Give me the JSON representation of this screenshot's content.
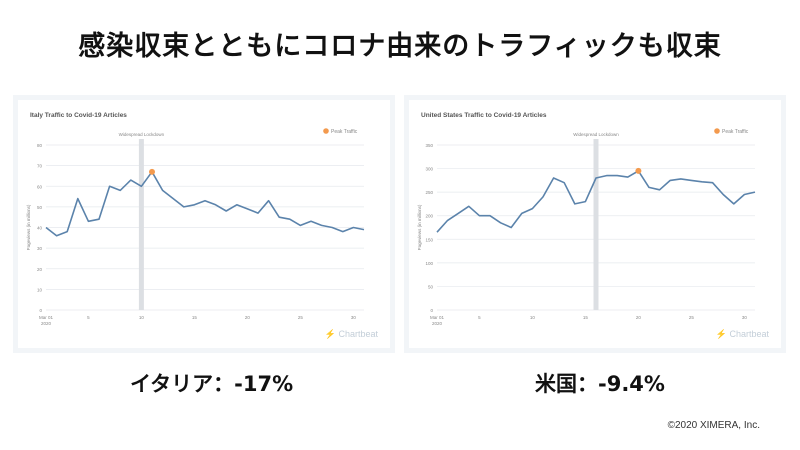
{
  "slide": {
    "title": "感染収束とともにコロナ由来のトラフィックも収束",
    "copyright": "©2020 XIMERA, Inc."
  },
  "captions": {
    "left": "イタリア：-17%",
    "right": "米国：-9.4%"
  },
  "colors": {
    "line": "#5b83ab",
    "peak": "#f39a4e",
    "grid": "#e6e9ee",
    "lockdown_band": "#dcdfe3"
  },
  "chart_data": [
    {
      "type": "line",
      "title": "Italy Traffic to Covid-19 Articles",
      "ylabel": "Pageviews (in millions)",
      "xlabel": "",
      "xlim": [
        1,
        31
      ],
      "ylim": [
        0,
        80
      ],
      "yticks": [
        0,
        10,
        20,
        30,
        40,
        50,
        60,
        70,
        80
      ],
      "xticks": [
        1,
        5,
        10,
        15,
        20,
        25,
        30
      ],
      "xtick_labels": [
        "Mar 01",
        "5",
        "10",
        "15",
        "20",
        "25",
        "30"
      ],
      "xtick_sublabel": "2020",
      "annotation": "Widespread Lockdown",
      "lockdown_x": 10,
      "legend": "Peak Traffic",
      "legend_position": "top-right",
      "peak": {
        "x": 11,
        "y": 67
      },
      "brand": "Chartbeat",
      "series": [
        {
          "x": [
            1,
            2,
            3,
            4,
            5,
            6,
            7,
            8,
            9,
            10,
            11,
            12,
            13,
            14,
            15,
            16,
            17,
            18,
            19,
            20,
            21,
            22,
            23,
            24,
            25,
            26,
            27,
            28,
            29,
            30,
            31
          ],
          "values": [
            40,
            36,
            38,
            54,
            43,
            44,
            60,
            58,
            63,
            60,
            67,
            58,
            54,
            50,
            51,
            53,
            51,
            48,
            51,
            49,
            47,
            53,
            45,
            44,
            41,
            43,
            41,
            40,
            38,
            40,
            39
          ]
        }
      ]
    },
    {
      "type": "line",
      "title": "United States Traffic to Covid-19 Articles",
      "ylabel": "Pageviews (in millions)",
      "xlabel": "",
      "xlim": [
        1,
        31
      ],
      "ylim": [
        0,
        350
      ],
      "yticks": [
        0,
        50,
        100,
        150,
        200,
        250,
        300,
        350
      ],
      "xticks": [
        1,
        5,
        10,
        15,
        20,
        25,
        30
      ],
      "xtick_labels": [
        "Mar 01",
        "5",
        "10",
        "15",
        "20",
        "25",
        "30"
      ],
      "xtick_sublabel": "2020",
      "annotation": "Widespread Lockdown",
      "lockdown_x": 16,
      "legend": "Peak Traffic",
      "legend_position": "top-right",
      "peak": {
        "x": 20,
        "y": 295
      },
      "brand": "Chartbeat",
      "series": [
        {
          "x": [
            1,
            2,
            3,
            4,
            5,
            6,
            7,
            8,
            9,
            10,
            11,
            12,
            13,
            14,
            15,
            16,
            17,
            18,
            19,
            20,
            21,
            22,
            23,
            24,
            25,
            26,
            27,
            28,
            29,
            30,
            31
          ],
          "values": [
            165,
            190,
            205,
            220,
            200,
            200,
            185,
            175,
            205,
            215,
            240,
            280,
            270,
            225,
            230,
            280,
            285,
            285,
            282,
            295,
            260,
            255,
            275,
            278,
            275,
            272,
            270,
            245,
            225,
            245,
            250
          ]
        }
      ]
    }
  ]
}
